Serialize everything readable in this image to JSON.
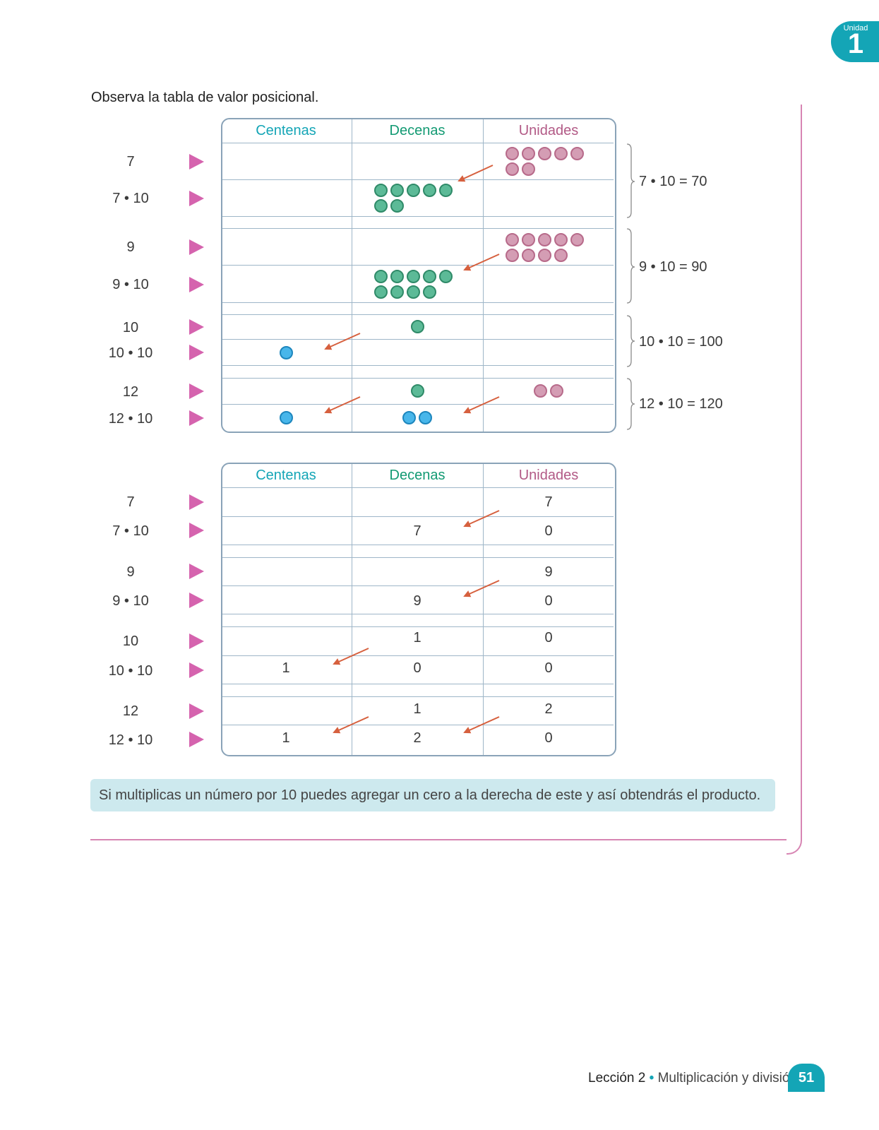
{
  "unit_tab": {
    "label": "Unidad",
    "number": "1"
  },
  "intro": "Observa la tabla de valor posicional.",
  "headers": {
    "centenas": "Centenas",
    "decenas": "Decenas",
    "unidades": "Unidades"
  },
  "colors": {
    "centenas": "#14a5b6",
    "decenas": "#139a73",
    "unidades": "#b25a86",
    "arrow": "#d6603e",
    "triangle": "#d563ae"
  },
  "row_labels": [
    "7",
    "7 • 10",
    "9",
    "9 • 10",
    "10",
    "10 • 10",
    "12",
    "12 • 10"
  ],
  "equations": [
    "7 • 10 = 70",
    "9 • 10 = 90",
    "10 • 10 = 100",
    "12 • 10 = 120"
  ],
  "table2_digits": {
    "r1": {
      "u": "7"
    },
    "r2": {
      "d": "7",
      "u": "0"
    },
    "r3": {
      "u": "9"
    },
    "r4": {
      "d": "9",
      "u": "0"
    },
    "r5": {
      "d": "1",
      "u": "0"
    },
    "r6": {
      "c": "1",
      "d": "0",
      "u": "0"
    },
    "r7": {
      "d": "1",
      "u": "2"
    },
    "r8": {
      "c": "1",
      "d": "2",
      "u": "0"
    }
  },
  "note": "Si multiplicas un número por 10 puedes agregar un cero a la derecha de este y así obtendrás el producto.",
  "footer": {
    "lesson": "Lección 2",
    "bullet": "•",
    "topic": "Multiplicación y división",
    "page": "51"
  }
}
